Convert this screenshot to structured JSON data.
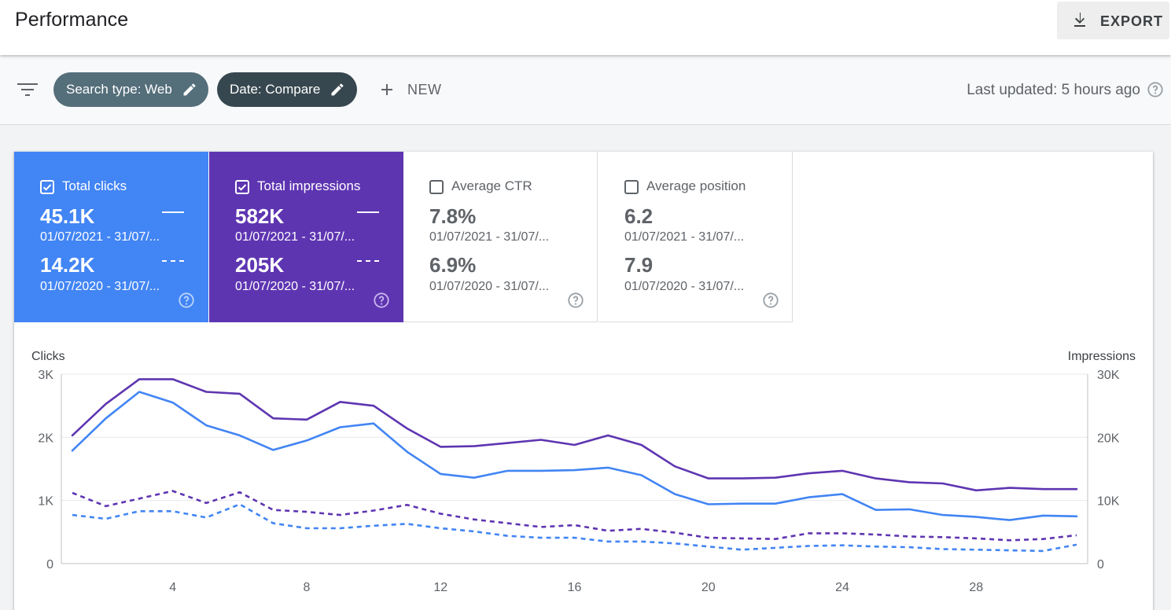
{
  "header": {
    "title": "Performance",
    "export_label": "EXPORT"
  },
  "filterbar": {
    "chips": [
      {
        "label": "Search type: Web"
      },
      {
        "label": "Date: Compare"
      }
    ],
    "new_label": "NEW",
    "last_updated": "Last updated: 5 hours ago"
  },
  "metrics": [
    {
      "label": "Total clicks",
      "checked": true,
      "value1": "45.1K",
      "date1": "01/07/2021 - 31/07/...",
      "value2": "14.2K",
      "date2": "01/07/2020 - 31/07/...",
      "color": "#4285f4"
    },
    {
      "label": "Total impressions",
      "checked": true,
      "value1": "582K",
      "date1": "01/07/2021 - 31/07/...",
      "value2": "205K",
      "date2": "01/07/2020 - 31/07/...",
      "color": "#5e35b1"
    },
    {
      "label": "Average CTR",
      "checked": false,
      "value1": "7.8%",
      "date1": "01/07/2021 - 31/07/...",
      "value2": "6.9%",
      "date2": "01/07/2020 - 31/07/..."
    },
    {
      "label": "Average position",
      "checked": false,
      "value1": "6.2",
      "date1": "01/07/2021 - 31/07/...",
      "value2": "7.9",
      "date2": "01/07/2020 - 31/07/..."
    }
  ],
  "chart_data": {
    "type": "line",
    "ylabel_left": "Clicks",
    "ylabel_right": "Impressions",
    "yticks_left": [
      "0",
      "1K",
      "2K",
      "3K"
    ],
    "yticks_right": [
      "0",
      "10K",
      "20K",
      "30K"
    ],
    "xticks": [
      "4",
      "8",
      "12",
      "16",
      "20",
      "24",
      "28"
    ],
    "ylim_left": [
      0,
      3000
    ],
    "ylim_right": [
      0,
      30000
    ],
    "xlim": [
      1,
      31
    ],
    "grid": true,
    "x": [
      1,
      2,
      3,
      4,
      5,
      6,
      7,
      8,
      9,
      10,
      11,
      12,
      13,
      14,
      15,
      16,
      17,
      18,
      19,
      20,
      21,
      22,
      23,
      24,
      25,
      26,
      27,
      28,
      29,
      30,
      31
    ],
    "series": [
      {
        "axis": "left",
        "style": "solid",
        "color": "#4285f4",
        "values": [
          1790,
          2300,
          2720,
          2550,
          2190,
          2030,
          1800,
          1950,
          2160,
          2220,
          1770,
          1420,
          1360,
          1470,
          1470,
          1480,
          1520,
          1400,
          1100,
          940,
          950,
          950,
          1050,
          1100,
          850,
          860,
          770,
          740,
          690,
          760,
          750
        ]
      },
      {
        "axis": "right",
        "style": "solid",
        "color": "#5e35b1",
        "values": [
          20300,
          25300,
          29200,
          29200,
          27200,
          26900,
          23000,
          22800,
          25600,
          25000,
          21400,
          18500,
          18600,
          19100,
          19600,
          18800,
          20300,
          18800,
          15400,
          13500,
          13500,
          13600,
          14300,
          14700,
          13500,
          12900,
          12700,
          11600,
          12000,
          11800,
          11800
        ]
      },
      {
        "axis": "left",
        "style": "dashed",
        "color": "#4285f4",
        "values": [
          770,
          710,
          830,
          830,
          730,
          940,
          640,
          560,
          560,
          600,
          630,
          560,
          510,
          440,
          410,
          410,
          350,
          350,
          320,
          270,
          220,
          250,
          280,
          290,
          270,
          260,
          230,
          220,
          210,
          200,
          300
        ]
      },
      {
        "axis": "right",
        "style": "dashed",
        "color": "#5e35b1",
        "values": [
          11200,
          9100,
          10300,
          11500,
          9600,
          11300,
          8500,
          8200,
          7700,
          8400,
          9300,
          7900,
          7000,
          6400,
          5800,
          6100,
          5200,
          5500,
          4900,
          4100,
          4000,
          3900,
          4800,
          4800,
          4600,
          4300,
          4200,
          4000,
          3700,
          3900,
          4500
        ]
      }
    ]
  }
}
